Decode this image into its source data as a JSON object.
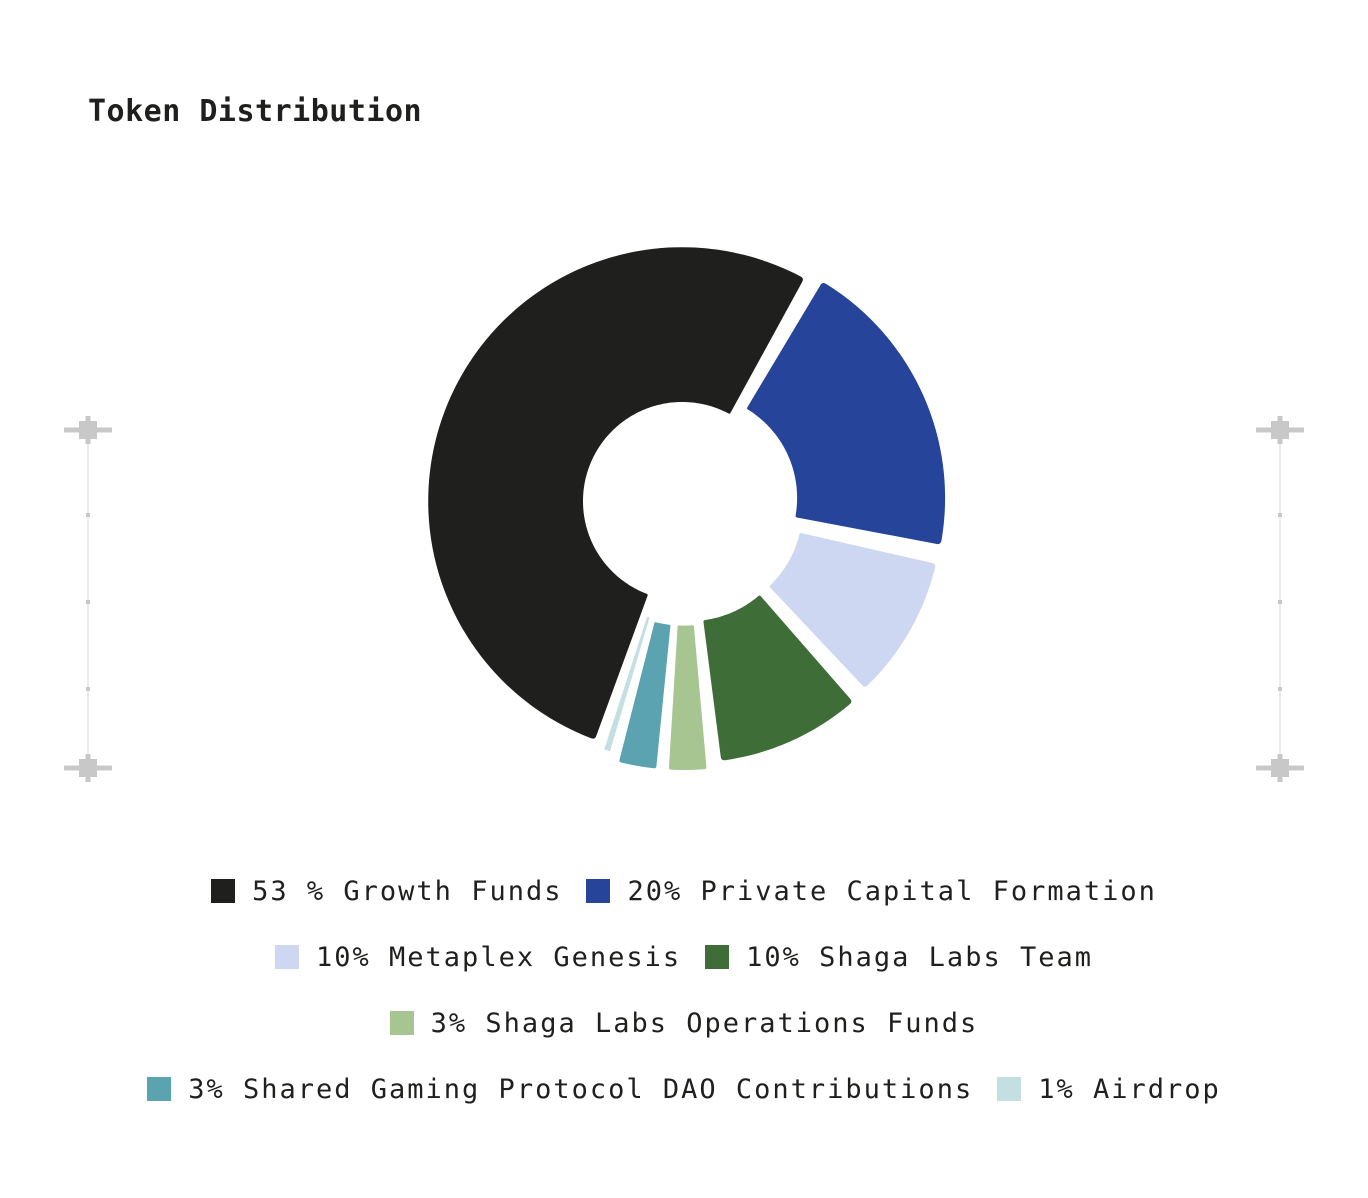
{
  "chart_data": {
    "type": "pie",
    "title": "Token Distribution",
    "donut": true,
    "slices": [
      {
        "label": "53 % Growth Funds",
        "value": 53,
        "color": "#1f1f1d"
      },
      {
        "label": "20% Private Capital Formation",
        "value": 20,
        "color": "#264499"
      },
      {
        "label": "10% Metaplex Genesis",
        "value": 10,
        "color": "#cdd7f1"
      },
      {
        "label": "10% Shaga Labs Team",
        "value": 10,
        "color": "#3e6d38"
      },
      {
        "label": "3% Shaga Labs Operations Funds",
        "value": 3,
        "color": "#a6c591"
      },
      {
        "label": "3% Shared Gaming Protocol DAO Contributions",
        "value": 3,
        "color": "#5ba3b0"
      },
      {
        "label": "1% Airdrop",
        "value": 1,
        "color": "#c4dfe2"
      }
    ],
    "legend_position": "bottom",
    "legend_rows": [
      [
        0,
        1
      ],
      [
        2,
        3
      ],
      [
        4
      ],
      [
        5,
        6
      ]
    ]
  },
  "decor": {
    "marker_color": "#c8c8c8",
    "guide_color": "#ececec"
  }
}
